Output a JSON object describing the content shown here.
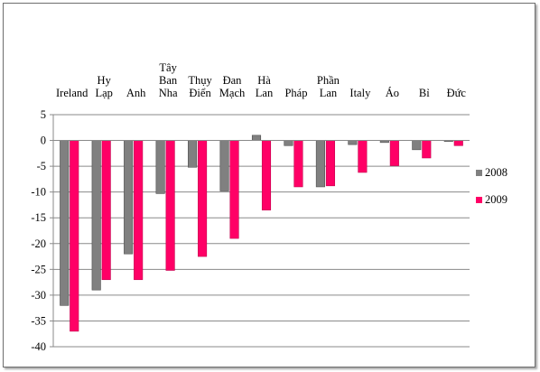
{
  "chart_data": {
    "type": "bar",
    "title": "",
    "xlabel": "",
    "ylabel": "",
    "ylim": [
      -40,
      5
    ],
    "yticks": [
      5,
      0,
      -5,
      -10,
      -15,
      -20,
      -25,
      -30,
      -35,
      -40
    ],
    "grid": true,
    "legend_position": "right",
    "categories": [
      [
        "Ireland"
      ],
      [
        "Hy",
        "Lạp"
      ],
      [
        "Anh"
      ],
      [
        "Tây",
        "Ban",
        "Nha"
      ],
      [
        "Thụy",
        "Điển"
      ],
      [
        "Đan",
        "Mạch"
      ],
      [
        "Hà",
        "Lan"
      ],
      [
        "Pháp"
      ],
      [
        "Phần",
        "Lan"
      ],
      [
        "Italy"
      ],
      [
        "Áo"
      ],
      [
        "Bỉ"
      ],
      [
        "Đức"
      ]
    ],
    "series": [
      {
        "name": "2008",
        "color": "#808080",
        "values": [
          -32,
          -29,
          -22,
          -10.3,
          -5.2,
          -9.8,
          1,
          -1,
          -9,
          -0.8,
          -0.4,
          -1.8,
          -0.2
        ]
      },
      {
        "name": "2009",
        "color": "#FF0066",
        "values": [
          -37,
          -27,
          -27,
          -25.2,
          -22.5,
          -19,
          -13.5,
          -9,
          -8.8,
          -6.2,
          -4.9,
          -3.4,
          -1
        ]
      }
    ]
  }
}
